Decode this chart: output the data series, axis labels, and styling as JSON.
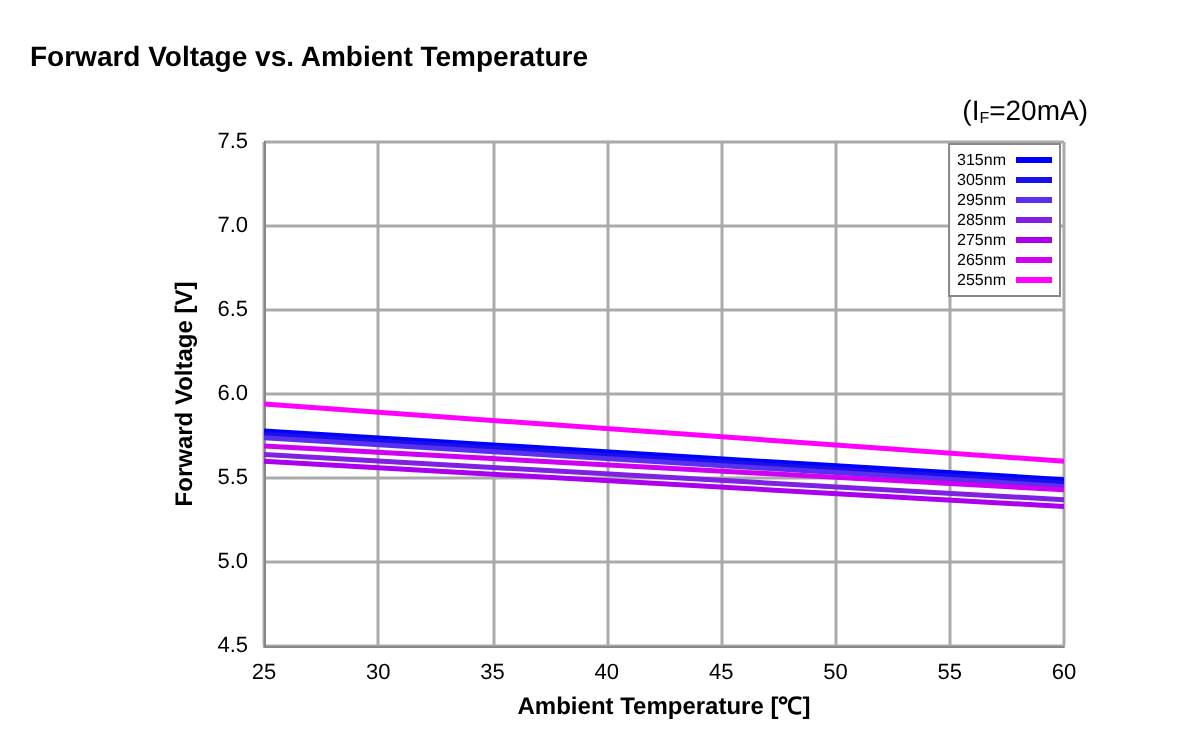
{
  "chart_data": {
    "type": "line",
    "title": "Forward Voltage vs. Ambient Temperature",
    "xlabel": "Ambient Temperature [℃]",
    "ylabel": "Forward Voltage [V]",
    "annotations": [
      "(I$_{F}$=20mA)"
    ],
    "x": [
      25,
      60
    ],
    "series": [
      {
        "name": "315nm",
        "color": "#0000ff",
        "values": [
          5.78,
          5.49
        ]
      },
      {
        "name": "305nm",
        "color": "#1a10e8",
        "values": [
          5.76,
          5.47
        ]
      },
      {
        "name": "295nm",
        "color": "#5a30f0",
        "values": [
          5.74,
          5.45
        ]
      },
      {
        "name": "285nm",
        "color": "#8020e0",
        "values": [
          5.64,
          5.37
        ]
      },
      {
        "name": "275nm",
        "color": "#aa00ee",
        "values": [
          5.6,
          5.33
        ]
      },
      {
        "name": "265nm",
        "color": "#d000f0",
        "values": [
          5.69,
          5.43
        ]
      },
      {
        "name": "255nm",
        "color": "#ff00ff",
        "values": [
          5.94,
          5.6
        ]
      }
    ],
    "xlim": [
      25,
      60
    ],
    "xticks": [
      25,
      30,
      35,
      40,
      45,
      50,
      55,
      60
    ],
    "ylim": [
      4.5,
      7.5
    ],
    "yticks": [
      4.5,
      {
        "value": 5,
        "label": "5.0"
      },
      5.5,
      {
        "value": 6,
        "label": "6.0"
      },
      6.5,
      {
        "value": 7,
        "label": "7.0"
      },
      7.5
    ],
    "grid": true,
    "legend": "top right",
    "marker": "none",
    "line_style": "solid"
  }
}
